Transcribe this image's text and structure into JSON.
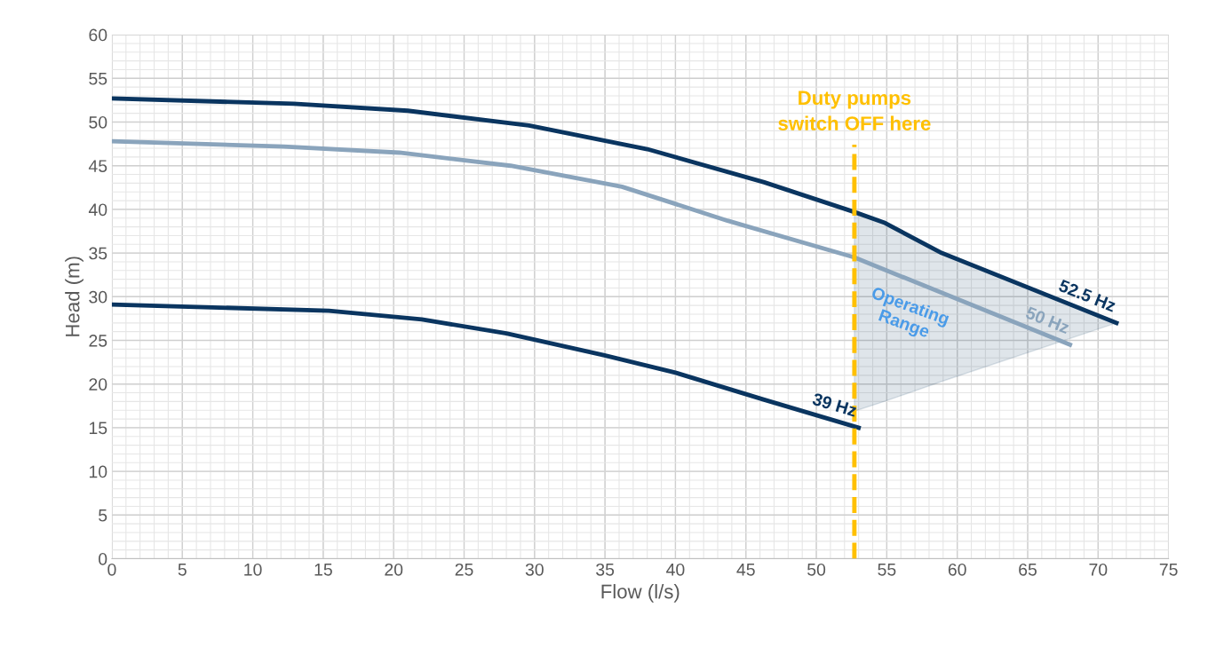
{
  "chart_data": {
    "type": "line",
    "xlabel": "Flow (l/s)",
    "ylabel": "Head (m)",
    "xlim": [
      0,
      75
    ],
    "xticks": [
      0,
      5,
      10,
      15,
      20,
      25,
      30,
      35,
      40,
      45,
      50,
      55,
      60,
      65,
      70,
      75
    ],
    "ylim": [
      0,
      60
    ],
    "yticks": [
      0,
      5,
      10,
      15,
      20,
      25,
      30,
      35,
      40,
      45,
      50,
      55,
      60
    ],
    "grid": true,
    "marker": "none",
    "line_style": "solid",
    "series": [
      {
        "name": "52.5 Hz",
        "color": "#0a3560",
        "x": [
          0,
          12.9,
          21,
          29.6,
          38,
          46.3,
          52.7,
          54.8,
          58.9,
          71.3
        ],
        "values": [
          52.7,
          52.1,
          51.3,
          49.6,
          46.9,
          43.1,
          39.7,
          38.5,
          35.0,
          27.0
        ],
        "lower": [
          null,
          null,
          null,
          null,
          null,
          null,
          16.9,
          18.0,
          20.3,
          27.0
        ],
        "upper": [
          null,
          null,
          null,
          null,
          null,
          null,
          39.7,
          38.5,
          35.0,
          27.0
        ]
      },
      {
        "name": "50 Hz",
        "color": "#8aa4bc",
        "x": [
          0,
          12.2,
          20.4,
          28.3,
          36.2,
          43.7,
          52.7,
          68
        ],
        "values": [
          47.8,
          47.2,
          46.5,
          45.0,
          42.6,
          38.7,
          34.5,
          24.5
        ]
      },
      {
        "name": "39 Hz",
        "color": "#0a3560",
        "x": [
          0,
          15.4,
          22,
          28,
          34.9,
          40,
          46.3,
          53
        ],
        "values": [
          29.1,
          28.4,
          27.4,
          25.8,
          23.3,
          21.3,
          18.2,
          15.0
        ]
      }
    ],
    "annotations": [
      "Operating\nRange"
    ],
    "ref_lines": [
      {
        "axis": "x",
        "value": 52.7,
        "label": "Duty pumps\nswitch OFF here",
        "color": "#ffc000",
        "line_style": "dashed"
      }
    ]
  }
}
